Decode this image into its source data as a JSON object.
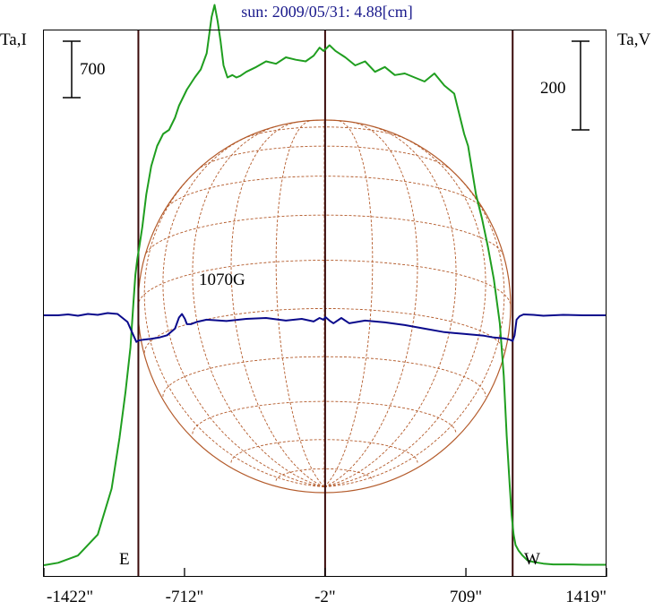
{
  "chart_data": {
    "type": "line",
    "title": "sun: 2009/05/31: 4.88[cm]",
    "left_axis_label": "Ta,I",
    "right_axis_label": "Ta,V",
    "left_scale_bar": "700",
    "right_scale_bar": "200",
    "annotation": "1070G",
    "east_label": "E",
    "west_label": "W",
    "x_ticks": [
      {
        "value": -1422,
        "label": "-1422\""
      },
      {
        "value": -712,
        "label": "-712\""
      },
      {
        "value": -2,
        "label": "-2\""
      },
      {
        "value": 709,
        "label": "709\""
      },
      {
        "value": 1419,
        "label": "1419\""
      }
    ],
    "xlim": [
      -1422,
      1419
    ],
    "vertical_lines_x": [
      -945,
      -2,
      945
    ],
    "grid": false,
    "colors": {
      "intensity": "#1f9e1f",
      "polarization": "#0a0a8c",
      "disk": "#b35a2a",
      "frame": "#000000",
      "markers": "#3a0a0a"
    },
    "series": [
      {
        "name": "Ta,I",
        "axis": "left",
        "x": [
          -1422,
          -1350,
          -1250,
          -1150,
          -1080,
          -1040,
          -1010,
          -985,
          -970,
          -960,
          -950,
          -940,
          -925,
          -905,
          -880,
          -850,
          -820,
          -790,
          -760,
          -740,
          -700,
          -660,
          -630,
          -600,
          -575,
          -560,
          -545,
          -530,
          -515,
          -495,
          -470,
          -450,
          -430,
          -400,
          -350,
          -300,
          -250,
          -200,
          -150,
          -100,
          -60,
          -30,
          -10,
          0,
          20,
          50,
          100,
          150,
          200,
          250,
          300,
          350,
          400,
          450,
          500,
          550,
          600,
          650,
          700,
          720,
          740,
          760,
          790,
          820,
          850,
          880,
          900,
          915,
          930,
          940,
          950,
          960,
          975,
          995,
          1020,
          1050,
          1100,
          1150,
          1200,
          1250,
          1300,
          1350,
          1419
        ],
        "y": [
          0,
          30,
          120,
          380,
          950,
          1580,
          2150,
          2700,
          3250,
          3600,
          3800,
          3950,
          4200,
          4600,
          4950,
          5200,
          5350,
          5400,
          5550,
          5700,
          5900,
          6050,
          6150,
          6350,
          6800,
          6950,
          6750,
          6500,
          6200,
          6050,
          6080,
          6050,
          6070,
          6120,
          6180,
          6250,
          6220,
          6300,
          6270,
          6250,
          6320,
          6420,
          6380,
          6400,
          6450,
          6380,
          6300,
          6200,
          6250,
          6120,
          6180,
          6080,
          6100,
          6050,
          6000,
          6100,
          5950,
          5850,
          5350,
          5200,
          4900,
          4600,
          4300,
          3950,
          3550,
          3000,
          2350,
          1600,
          1000,
          620,
          380,
          250,
          180,
          120,
          60,
          40,
          20,
          10,
          10,
          10,
          5,
          5,
          5
        ]
      },
      {
        "name": "Ta,V",
        "axis": "right",
        "x": [
          -1422,
          -1350,
          -1300,
          -1250,
          -1200,
          -1150,
          -1100,
          -1050,
          -1000,
          -975,
          -955,
          -945,
          -920,
          -880,
          -840,
          -800,
          -760,
          -740,
          -725,
          -710,
          -700,
          -680,
          -650,
          -600,
          -500,
          -400,
          -300,
          -200,
          -120,
          -60,
          -30,
          -10,
          0,
          20,
          40,
          80,
          120,
          200,
          300,
          400,
          500,
          600,
          700,
          800,
          850,
          900,
          930,
          945,
          955,
          965,
          980,
          1000,
          1050,
          1100,
          1200,
          1300,
          1419
        ],
        "y": [
          0,
          0,
          2,
          -1,
          3,
          1,
          5,
          3,
          -15,
          -40,
          -60,
          -57,
          -55,
          -53,
          -50,
          -45,
          -30,
          -5,
          3,
          -8,
          -20,
          -20,
          -15,
          -10,
          -13,
          -8,
          -6,
          -12,
          -8,
          -14,
          -6,
          -10,
          -4,
          -12,
          -18,
          -6,
          -18,
          -12,
          -16,
          -22,
          -30,
          -38,
          -42,
          -46,
          -50,
          -52,
          -55,
          -58,
          -45,
          -10,
          -2,
          2,
          1,
          -1,
          1,
          0,
          0
        ]
      }
    ]
  }
}
